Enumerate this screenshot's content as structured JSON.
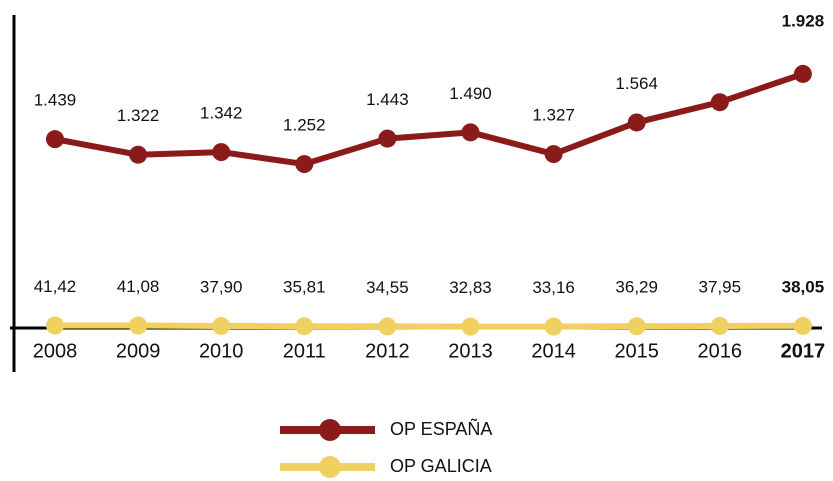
{
  "chart_data": {
    "type": "line",
    "categories": [
      "2008",
      "2009",
      "2010",
      "2011",
      "2012",
      "2013",
      "2014",
      "2015",
      "2016",
      "2017"
    ],
    "series": [
      {
        "name": "OP ESPAÑA",
        "color": "#8b1a1a",
        "values": [
          1439,
          1322,
          1342,
          1252,
          1443,
          1490,
          1327,
          1564,
          1716,
          1928
        ],
        "value_labels": [
          "1.439",
          "1.322",
          "1.342",
          "1.252",
          "1.443",
          "1.490",
          "1.327",
          "1.564",
          null,
          "1.928"
        ]
      },
      {
        "name": "OP GALICIA",
        "color": "#f0d060",
        "values": [
          41.42,
          41.08,
          37.9,
          35.81,
          34.55,
          32.83,
          33.16,
          36.29,
          37.95,
          38.05
        ],
        "value_labels": [
          "41,42",
          "41,08",
          "37,90",
          "35,81",
          "34,55",
          "32,83",
          "33,16",
          "36,29",
          "37,95",
          "38,05"
        ]
      }
    ],
    "ylim": [
      0,
      2400
    ],
    "highlight_index": 9,
    "legend": "bottom"
  }
}
